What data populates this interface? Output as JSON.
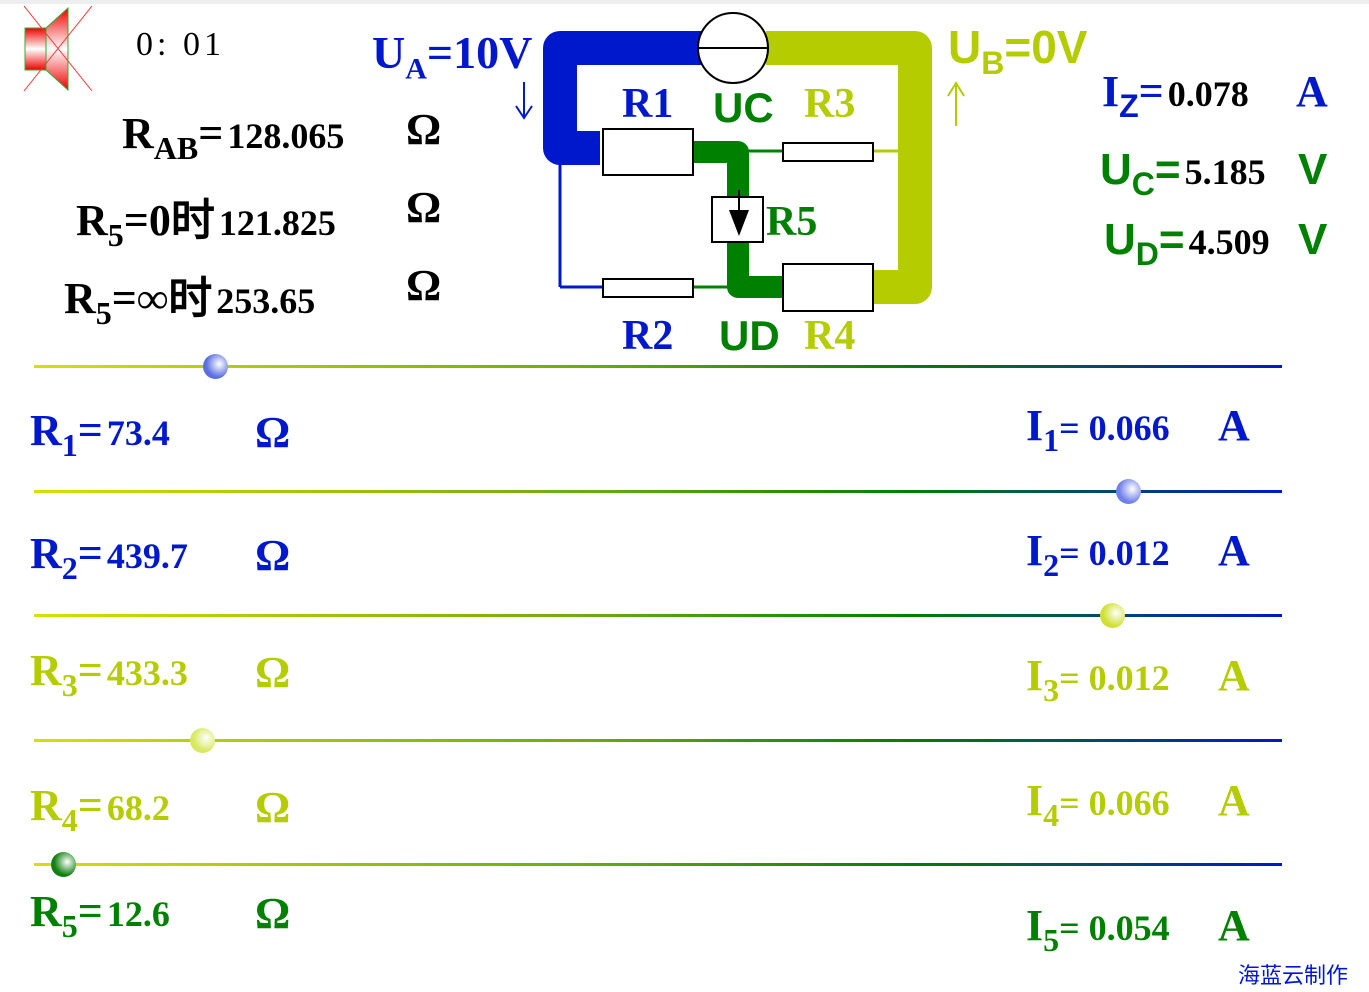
{
  "timer": "0: 01",
  "sound_icon": "speaker-muted-icon",
  "colors": {
    "blue": "#0018cc",
    "green": "#008000",
    "yellowgreen": "#b4cc00"
  },
  "totals": {
    "rab": {
      "label": "R",
      "sub": "AB",
      "eq": "=",
      "value": "128.065",
      "unit": "Ω"
    },
    "r5zero": {
      "label": "R",
      "sub": "5",
      "eq": "=0时",
      "value": "121.825",
      "unit": "Ω"
    },
    "r5inf": {
      "label": "R",
      "sub": "5",
      "eq": "=∞时",
      "value": "253.65",
      "unit": "Ω"
    }
  },
  "circuit": {
    "ua": {
      "label": "U",
      "sub": "A",
      "eq": "=10V"
    },
    "ub": {
      "label": "U",
      "sub": "B",
      "eq": "=0V"
    },
    "labels": {
      "r1": "R1",
      "r2": "R2",
      "r3": "R3",
      "r4": "R4",
      "r5": "R5",
      "uc": "UC",
      "ud": "UD"
    }
  },
  "readouts": {
    "iz": {
      "label": "I",
      "sub": "Z",
      "eq": "=",
      "value": "0.078",
      "unit": "A"
    },
    "uc": {
      "label": "U",
      "sub": "C",
      "eq": "=",
      "value": "5.185",
      "unit": "V"
    },
    "ud": {
      "label": "U",
      "sub": "D",
      "eq": "=",
      "value": "4.509",
      "unit": "V"
    }
  },
  "rows": [
    {
      "r": "R",
      "rsub": "1",
      "eq": "=",
      "value": "73.4",
      "unit": "Ω",
      "i": "I",
      "isub": "1",
      "ival": "= 0.066",
      "iunit": "A",
      "slider_fraction": 0.145,
      "thumb_color": "#5a6ee0"
    },
    {
      "r": "R",
      "rsub": "2",
      "eq": "=",
      "value": "439.7",
      "unit": "Ω",
      "i": "I",
      "isub": "2",
      "ival": "= 0.012",
      "iunit": "A",
      "slider_fraction": 0.877,
      "thumb_color": "#7080e8"
    },
    {
      "r": "R",
      "rsub": "3",
      "eq": "=",
      "value": "433.3",
      "unit": "Ω",
      "i": "I",
      "isub": "3",
      "ival": "= 0.012",
      "iunit": "A",
      "slider_fraction": 0.864,
      "thumb_color": "#d0e030"
    },
    {
      "r": "R",
      "rsub": "4",
      "eq": "=",
      "value": "68.2",
      "unit": "Ω",
      "i": "I",
      "isub": "4",
      "ival": "= 0.066",
      "iunit": "A",
      "slider_fraction": 0.135,
      "thumb_color": "#d8e860"
    },
    {
      "r": "R",
      "rsub": "5",
      "eq": "=",
      "value": "12.6",
      "unit": "Ω",
      "i": "I",
      "isub": "5",
      "ival": "= 0.054",
      "iunit": "A",
      "slider_fraction": 0.023,
      "thumb_color": "#108010"
    }
  ],
  "credit": "海蓝云制作"
}
